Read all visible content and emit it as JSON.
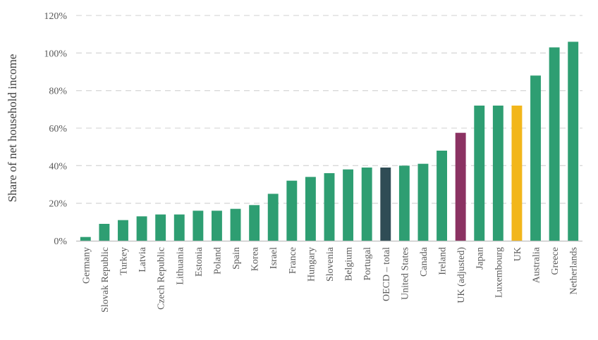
{
  "chart_data": {
    "type": "bar",
    "title": "",
    "xlabel": "",
    "ylabel": "Share of net household income",
    "ylim": [
      0,
      120
    ],
    "yticks": [
      "0%",
      "20%",
      "40%",
      "60%",
      "80%",
      "100%",
      "120%"
    ],
    "grid": "horizontal-dashed",
    "legend": "none",
    "categories": [
      "Germany",
      "Slovak Republic",
      "Turkey",
      "Latvia",
      "Czech Republic",
      "Lithuania",
      "Estonia",
      "Poland",
      "Spain",
      "Korea",
      "Israel",
      "France",
      "Hungary",
      "Slovenia",
      "Belgium",
      "Portugal",
      "OECD – total",
      "United States",
      "Canada",
      "Ireland",
      "UK (adjusted)",
      "Japan",
      "Luxembourg",
      "UK",
      "Australia",
      "Greece",
      "Netherlands"
    ],
    "values": [
      2,
      9,
      11,
      13,
      14,
      14,
      16,
      16,
      17,
      19,
      25,
      32,
      34,
      36,
      38,
      39,
      39,
      40,
      41,
      48,
      57.5,
      72,
      72,
      72,
      88,
      103,
      106
    ],
    "colors": {
      "default": "#2e9e72",
      "highlight": {
        "OECD – total": "#2f4c55",
        "UK (adjusted)": "#8b3262",
        "UK": "#f2b61b"
      },
      "grid": "#d9d9d9",
      "axis": "#bfbfbf",
      "text": "#595959"
    }
  }
}
